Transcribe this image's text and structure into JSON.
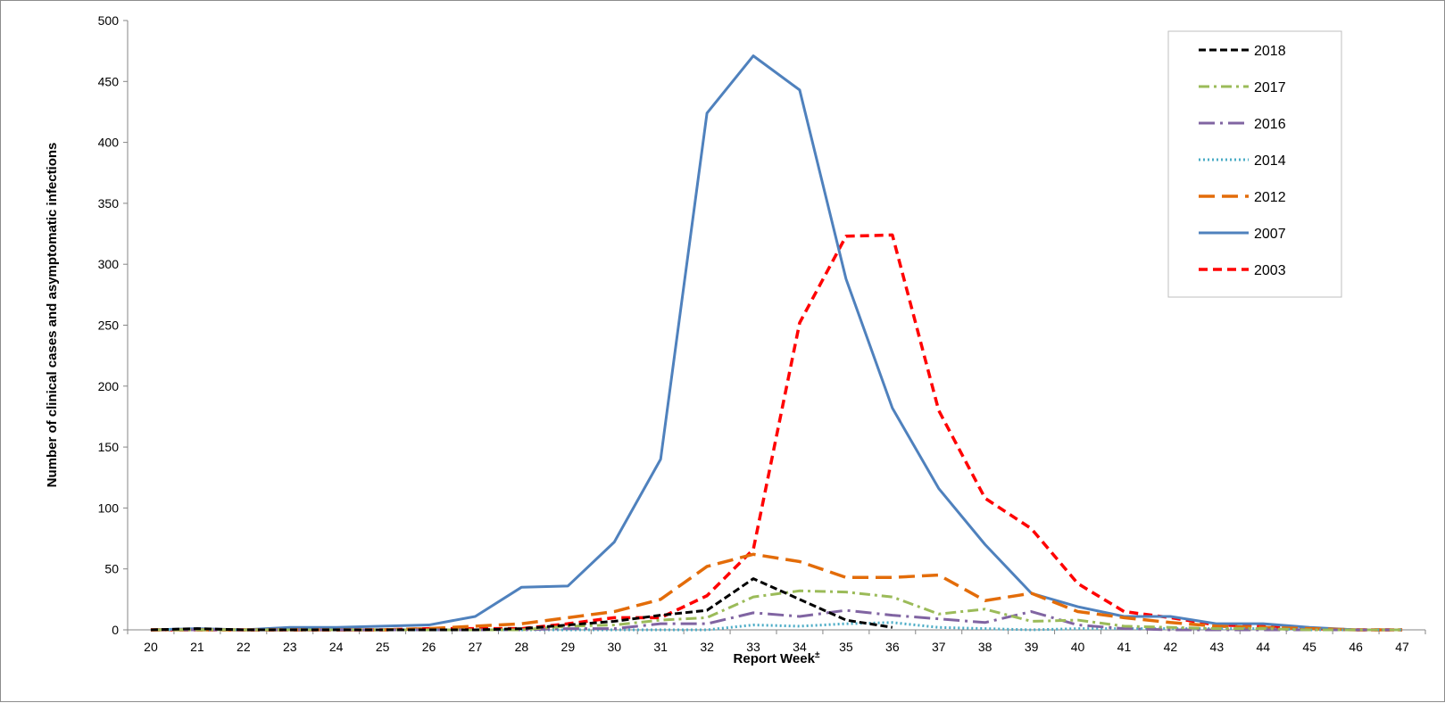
{
  "chart_data": {
    "type": "line",
    "title": "",
    "xlabel": "Report Week",
    "xlabel_superscript": "±",
    "ylabel": "Number of clinical cases and asymptomatic infections",
    "x": [
      20,
      21,
      22,
      23,
      24,
      25,
      26,
      27,
      28,
      29,
      30,
      31,
      32,
      33,
      34,
      35,
      36,
      37,
      38,
      39,
      40,
      41,
      42,
      43,
      44,
      45,
      46,
      47
    ],
    "ylim": [
      0,
      500
    ],
    "yticks": [
      0,
      50,
      100,
      150,
      200,
      250,
      300,
      350,
      400,
      450,
      500
    ],
    "legend_position": "top-right",
    "series": [
      {
        "name": "2018",
        "color": "#000000",
        "dash": "short-dash",
        "values": [
          0,
          1,
          0,
          0,
          0,
          0,
          0,
          0,
          1,
          4,
          7,
          12,
          16,
          42,
          25,
          8,
          2,
          null,
          null,
          null,
          null,
          null,
          null,
          null,
          null,
          null,
          null,
          null
        ]
      },
      {
        "name": "2017",
        "color": "#9bbb59",
        "dash": "dash-dot",
        "values": [
          0,
          0,
          0,
          0,
          0,
          0,
          0,
          0,
          0,
          3,
          4,
          8,
          10,
          27,
          32,
          31,
          27,
          13,
          17,
          7,
          8,
          3,
          2,
          1,
          1,
          0,
          0,
          0
        ]
      },
      {
        "name": "2016",
        "color": "#8064a2",
        "dash": "long-dash-dot",
        "values": [
          0,
          0,
          0,
          0,
          0,
          0,
          0,
          0,
          0,
          1,
          1,
          5,
          5,
          14,
          11,
          16,
          12,
          9,
          6,
          15,
          4,
          1,
          0,
          0,
          0,
          0,
          0,
          0
        ]
      },
      {
        "name": "2014",
        "color": "#4bacc6",
        "dash": "dotted",
        "values": [
          0,
          0,
          0,
          0,
          0,
          0,
          0,
          0,
          0,
          0,
          0,
          0,
          0,
          4,
          3,
          5,
          6,
          2,
          1,
          0,
          1,
          1,
          1,
          1,
          1,
          0,
          0,
          0
        ]
      },
      {
        "name": "2012",
        "color": "#e36c09",
        "dash": "long-dash",
        "values": [
          0,
          0,
          0,
          0,
          0,
          0,
          1,
          3,
          5,
          10,
          15,
          25,
          52,
          62,
          56,
          43,
          43,
          45,
          24,
          30,
          15,
          10,
          6,
          3,
          2,
          1,
          0,
          0
        ]
      },
      {
        "name": "2007",
        "color": "#4f81bd",
        "dash": "solid",
        "values": [
          0,
          1,
          0,
          2,
          2,
          3,
          4,
          11,
          35,
          36,
          72,
          140,
          424,
          471,
          443,
          288,
          182,
          116,
          70,
          30,
          19,
          11,
          11,
          5,
          5,
          2,
          0,
          0
        ]
      },
      {
        "name": "2003",
        "color": "#ff0000",
        "dash": "dash",
        "values": [
          0,
          0,
          0,
          0,
          0,
          0,
          1,
          1,
          1,
          5,
          10,
          10,
          28,
          66,
          252,
          323,
          324,
          180,
          108,
          83,
          38,
          15,
          10,
          4,
          3,
          1,
          0,
          0
        ]
      }
    ]
  }
}
